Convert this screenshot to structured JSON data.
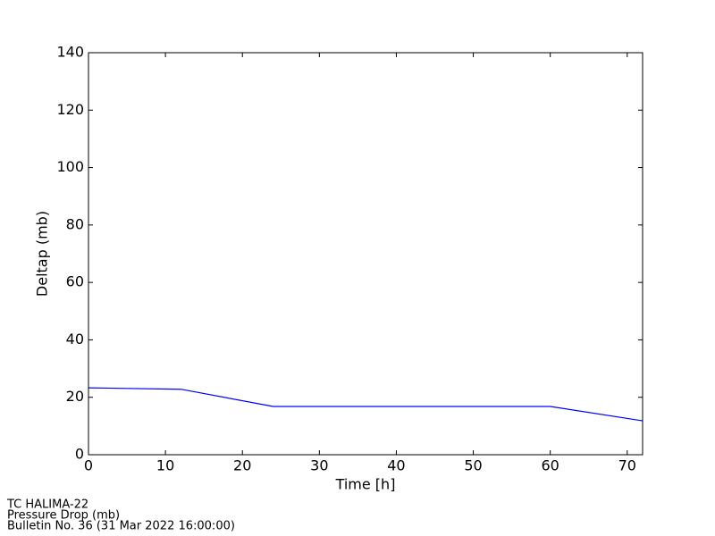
{
  "chart_data": {
    "type": "line",
    "xlabel": "Time [h]",
    "ylabel": "Deltap (mb)",
    "x": [
      0,
      12,
      24,
      36,
      48,
      60,
      72
    ],
    "series": [
      {
        "color": "#0000ff",
        "values": [
          23.3,
          22.8,
          16.8,
          16.8,
          16.8,
          16.8,
          11.8
        ]
      }
    ],
    "xlim": [
      0,
      72
    ],
    "xticks": [
      0,
      10,
      20,
      30,
      40,
      50,
      60,
      70
    ],
    "ylim": [
      0,
      140
    ],
    "yticks": [
      0,
      20,
      40,
      60,
      80,
      100,
      120,
      140
    ],
    "grid": false,
    "notes": [
      "TC HALIMA-22",
      "Pressure Drop (mb)",
      "Bulletin No. 36 (31 Mar 2022  16:00:00)"
    ]
  }
}
